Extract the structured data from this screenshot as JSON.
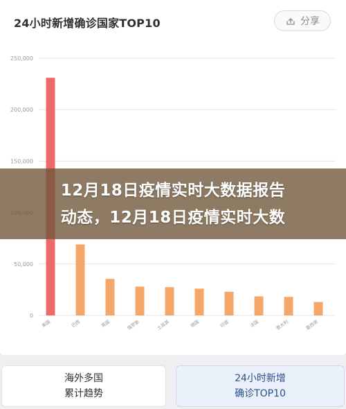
{
  "header": {
    "title": "24小时新增确诊国家TOP10",
    "share_label": "分享"
  },
  "overlay": {
    "line1": "12月18日疫情实时大数据报告",
    "line2": "动态，12月18日疫情实时大数"
  },
  "tabs": [
    {
      "label_line1": "海外多国",
      "label_line2": "累计趋势"
    },
    {
      "label_line1": "24小时新增",
      "label_line2": "确诊TOP10"
    }
  ],
  "colors": {
    "top_bar": "#ec6a67",
    "bars": "#f4a768",
    "grid": "#e6e6e6",
    "tick_text": "#999999"
  },
  "chart_data": {
    "type": "bar",
    "title": "24小时新增确诊国家TOP10",
    "categories": [
      "美国",
      "巴西",
      "英国",
      "俄罗斯",
      "土耳其",
      "德国",
      "印度",
      "法国",
      "意大利",
      "墨西哥"
    ],
    "values": [
      231000,
      69000,
      35500,
      28000,
      27500,
      26000,
      23000,
      18500,
      18000,
      13000
    ],
    "ylim": [
      0,
      250000
    ],
    "yticks": [
      0,
      50000,
      100000,
      150000,
      200000,
      250000
    ],
    "ytick_labels": [
      "0",
      "50,000",
      "100,000",
      "150,000",
      "200,000",
      "250,000"
    ],
    "grid": true
  }
}
